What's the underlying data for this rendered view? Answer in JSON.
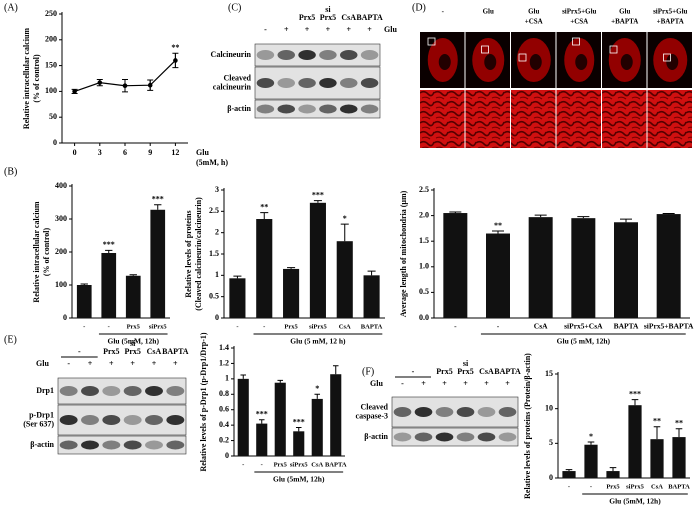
{
  "chart_data": [
    {
      "type": "line",
      "panel": "(A)",
      "x": [
        0,
        3,
        6,
        9,
        12
      ],
      "values": [
        100,
        117,
        111,
        112,
        160
      ],
      "errors": [
        4,
        6,
        12,
        10,
        14
      ],
      "significance": [
        null,
        null,
        null,
        null,
        "**"
      ],
      "xlim": [
        -1.5,
        13.5
      ],
      "xticks": [
        0,
        3,
        6,
        9,
        12
      ],
      "ylim": [
        0,
        250
      ],
      "yticks": [
        0,
        50,
        100,
        150,
        200,
        250
      ],
      "ylabel": [
        "Relative intracellular calcium",
        "(% of control)"
      ],
      "xlabel": [
        "Glu",
        "(5mM, h)"
      ],
      "color": "#000000"
    },
    {
      "type": "bar",
      "panel": "(B)",
      "categories": [
        "-",
        "-",
        "Prx5",
        "siPrx5"
      ],
      "values": [
        100,
        197,
        128,
        328
      ],
      "errors": [
        3,
        8,
        3,
        15
      ],
      "significance": [
        null,
        "***",
        null,
        "***"
      ],
      "ylim": [
        0,
        400
      ],
      "yticks": [
        0,
        100,
        200,
        300,
        400
      ],
      "ylabel": [
        "Relative intracellular calcium",
        "(% of control)"
      ],
      "group_label": "Glu (5mM, 12h)",
      "color": "#111111"
    },
    {
      "type": "bar",
      "categories": [
        "-",
        "-",
        "Prx5",
        "siPrx5",
        "CsA",
        "BAPTA"
      ],
      "values": [
        0.93,
        2.32,
        1.15,
        2.7,
        1.8,
        1.0
      ],
      "errors": [
        0.05,
        0.15,
        0.03,
        0.05,
        0.4,
        0.1
      ],
      "significance": [
        null,
        "**",
        null,
        "***",
        "*",
        null
      ],
      "ylim": [
        0,
        3
      ],
      "yticks": [
        0,
        0.5,
        1,
        1.5,
        2,
        2.5,
        3
      ],
      "ylabel": [
        "Relative levels of proteins",
        "(Cleaved calcineurin/calcineurin)"
      ],
      "group_label": "Glu (5 mM, 12 h)",
      "color": "#111111"
    },
    {
      "type": "bar",
      "categories": [
        "-",
        "-",
        "CsA",
        "siPrx5+CsA",
        "BAPTA",
        "siPrx5+BAPTA"
      ],
      "values": [
        2.05,
        1.65,
        1.97,
        1.95,
        1.87,
        2.03
      ],
      "errors": [
        0.02,
        0.05,
        0.04,
        0.03,
        0.06,
        0.01
      ],
      "significance": [
        null,
        "**",
        null,
        null,
        null,
        null
      ],
      "ylim": [
        0,
        2.5
      ],
      "yticks": [
        {
          "value": 0,
          "label": "0.0"
        },
        0.5,
        {
          "value": 1,
          "label": "1.0"
        },
        1.5,
        {
          "value": 2,
          "label": "2.0"
        },
        2.5
      ],
      "ylabel": [
        "Average length of mitochondria (μm)"
      ],
      "group_label": "Glu (5 mM, 12h)",
      "color": "#111111"
    },
    {
      "type": "bar",
      "categories": [
        "-",
        "-",
        "Prx5",
        "siPrx5",
        "CsA",
        "BAPTA"
      ],
      "values": [
        1.0,
        0.42,
        0.95,
        0.32,
        0.74,
        1.06
      ],
      "errors": [
        0.05,
        0.05,
        0.03,
        0.05,
        0.06,
        0.11
      ],
      "significance": [
        null,
        "***",
        null,
        "***",
        "*",
        null
      ],
      "ylim": [
        0,
        1.4
      ],
      "yticks": [
        0,
        0.2,
        0.4,
        0.6,
        0.8,
        1,
        1.2,
        1.4
      ],
      "ylabel": [
        "Relative levels of p-Drp1 (p-Drp1/Drp-1)"
      ],
      "group_label": "Glu (5mM, 12h)",
      "color": "#111111"
    },
    {
      "type": "bar",
      "categories": [
        "-",
        "-",
        "Prx5",
        "siPrx5",
        "CsA",
        "BAPTA"
      ],
      "values": [
        1,
        4.8,
        1,
        10.5,
        5.6,
        5.9
      ],
      "errors": [
        0.2,
        0.4,
        0.5,
        0.8,
        1.8,
        1.2
      ],
      "significance": [
        null,
        "*",
        null,
        "***",
        "**",
        "**"
      ],
      "ylim": [
        0,
        15
      ],
      "yticks": [
        0,
        5,
        10,
        15
      ],
      "ylabel": [
        "Relative levels of proteins (Protein/β-actin)"
      ],
      "group_label": "Glu (5mM, 12h)",
      "color": "#111111"
    }
  ],
  "blots": [
    {
      "panel": "(C)",
      "groups": [
        [
          "Prx5"
        ],
        [
          "si",
          "Prx5"
        ],
        [
          "CsA"
        ],
        [
          "BAPTA"
        ]
      ],
      "treatment": "Glu",
      "signs": [
        "-",
        "+",
        "+",
        "+",
        "+",
        "+"
      ],
      "rows": [
        [
          "Calcineurin"
        ],
        [
          "Cleaved",
          "calcineurin"
        ],
        [
          "β-actin"
        ]
      ]
    },
    {
      "panel": "(E)",
      "groups": [
        [
          "-"
        ],
        [
          "Prx5"
        ],
        [
          "si",
          "Prx5"
        ],
        [
          "CsA"
        ],
        [
          "BAPTA"
        ]
      ],
      "treatment": "Glu",
      "signs": [
        "-",
        "+",
        "+",
        "+",
        "+",
        "+"
      ],
      "rows": [
        [
          "Drp1"
        ],
        [
          "p-Drp1",
          "(Ser 637)"
        ],
        [
          "β-actin"
        ]
      ]
    },
    {
      "panel": "(F)",
      "groups": [
        [
          "-"
        ],
        [
          "Prx5"
        ],
        [
          "si",
          "Prx5"
        ],
        [
          "CsA"
        ],
        [
          "BAPTA"
        ]
      ],
      "treatment": "Glu",
      "signs": [
        "-",
        "+",
        "+",
        "+",
        "+",
        "+"
      ],
      "rows": [
        [
          "Cleaved",
          "caspase-3"
        ],
        [
          "β-actin"
        ]
      ]
    }
  ],
  "microscopy": {
    "panel": "(D)",
    "labels": [
      [
        "-"
      ],
      [
        "Glu"
      ],
      [
        "Glu",
        "+CSA"
      ],
      [
        "siPrx5+Glu",
        "+CSA"
      ],
      [
        "Glu",
        "+BAPTA"
      ],
      [
        "siPrx5+Glu",
        "+BAPTA"
      ]
    ]
  }
}
